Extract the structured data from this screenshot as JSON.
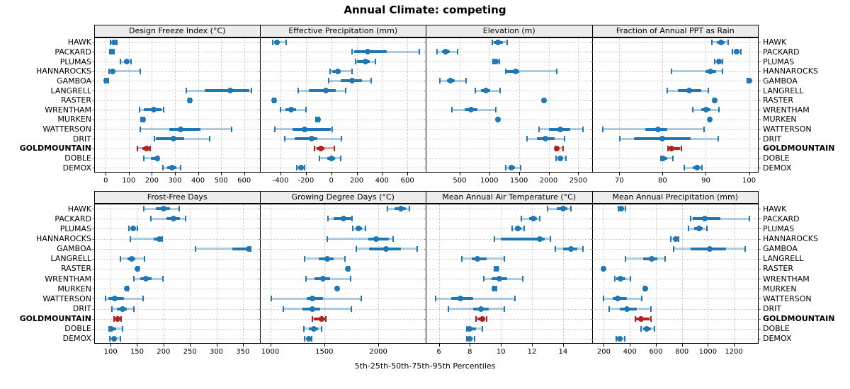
{
  "title": "Annual Climate: competing",
  "footer": "5th-25th-50th-75th-95th Percentiles",
  "sites": [
    "HAWK",
    "PACKARD",
    "PLUMAS",
    "HANNAROCKS",
    "GAMBOA",
    "LANGRELL",
    "RASTER",
    "WRENTHAM",
    "MURKEN",
    "WATTERSON",
    "DRIT",
    "GOLDMOUNTAIN",
    "DOBLE",
    "DEMOX"
  ],
  "highlight_site": "GOLDMOUNTAIN",
  "percentile_labels": [
    "5th",
    "25th",
    "50th",
    "75th",
    "95th"
  ],
  "colors": {
    "series": "#1f77b4",
    "series_band": "rgba(31,119,180,0.35)",
    "highlight": "#b22222",
    "highlight_band": "rgba(178,34,34,0.38)",
    "strip_bg": "#ececec",
    "grid": "#c9c9c9",
    "border": "#000000"
  },
  "chart_data": [
    {
      "type": "dotplot-interval",
      "title": "Design Freeze Index (°C)",
      "row": 0,
      "col": 0,
      "xlim": [
        -50,
        670
      ],
      "ticks": [
        0,
        100,
        200,
        300,
        400,
        500,
        600
      ],
      "grid": true,
      "values": {
        "HAWK": [
          20,
          28,
          35,
          42,
          48
        ],
        "PACKARD": [
          18,
          23,
          27,
          31,
          36
        ],
        "PLUMAS": [
          65,
          78,
          90,
          98,
          110
        ],
        "HANNAROCKS": [
          15,
          22,
          30,
          40,
          150
        ],
        "GAMBOA": [
          -3,
          0,
          1,
          5,
          12
        ],
        "LANGRELL": [
          348,
          430,
          540,
          622,
          632
        ],
        "RASTER": [
          358,
          362,
          365,
          368,
          372
        ],
        "WRENTHAM": [
          145,
          165,
          207,
          242,
          250
        ],
        "MURKEN": [
          153,
          157,
          161,
          165,
          169
        ],
        "WATTERSON": [
          150,
          275,
          325,
          410,
          545
        ],
        "DRIT": [
          211,
          218,
          293,
          339,
          450
        ],
        "GOLDMOUNTAIN": [
          138,
          160,
          176,
          191,
          194
        ],
        "DOBLE": [
          164,
          195,
          222,
          226,
          230
        ],
        "DEMOX": [
          247,
          266,
          288,
          307,
          326
        ]
      }
    },
    {
      "type": "dotplot-interval",
      "title": "Effective Precipitation (mm)",
      "row": 0,
      "col": 1,
      "xlim": [
        -560,
        750
      ],
      "ticks": [
        -400,
        -200,
        0,
        200,
        400,
        600
      ],
      "grid": true,
      "values": {
        "HAWK": [
          -460,
          -445,
          -430,
          -415,
          -355
        ],
        "PACKARD": [
          165,
          180,
          285,
          435,
          695
        ],
        "PLUMAS": [
          194,
          204,
          272,
          305,
          346
        ],
        "HANNAROCKS": [
          -9,
          9,
          52,
          74,
          163
        ],
        "GAMBOA": [
          -22,
          74,
          163,
          241,
          315
        ],
        "LANGRELL": [
          -263,
          -176,
          -41,
          37,
          115
        ],
        "RASTER": [
          -462,
          -456,
          -450,
          -444,
          -438
        ],
        "WRENTHAM": [
          -398,
          -361,
          -315,
          -278,
          -198
        ],
        "MURKEN": [
          -120,
          -112,
          -107,
          -101,
          -94
        ],
        "WATTERSON": [
          -448,
          -306,
          -209,
          -6,
          9
        ],
        "DRIT": [
          -367,
          -287,
          -157,
          -111,
          80
        ],
        "GOLDMOUNTAIN": [
          -133,
          -115,
          -80,
          -52,
          24
        ],
        "DOBLE": [
          -96,
          -33,
          0,
          28,
          74
        ],
        "DEMOX": [
          -272,
          -263,
          -240,
          -219,
          -213
        ]
      }
    },
    {
      "type": "dotplot-interval",
      "title": "Elevation (m)",
      "row": 0,
      "col": 2,
      "xlim": [
        -60,
        2740
      ],
      "ticks": [
        500,
        1000,
        1500,
        2000,
        2500
      ],
      "grid": true,
      "values": {
        "HAWK": [
          1046,
          1074,
          1145,
          1225,
          1297
        ],
        "PACKARD": [
          122,
          200,
          261,
          330,
          468
        ],
        "PLUMAS": [
          1058,
          1085,
          1113,
          1140,
          1165
        ],
        "HANNAROCKS": [
          1277,
          1290,
          1448,
          1504,
          2133
        ],
        "GAMBOA": [
          169,
          290,
          349,
          415,
          607
        ],
        "LANGRELL": [
          759,
          860,
          938,
          1010,
          1185
        ],
        "RASTER": [
          1910,
          1916,
          1922,
          1928,
          1934
        ],
        "WRENTHAM": [
          369,
          588,
          687,
          799,
          1105
        ],
        "MURKEN": [
          1130,
          1138,
          1145,
          1152,
          1160
        ],
        "WATTERSON": [
          1838,
          2009,
          2197,
          2367,
          2578
        ],
        "DRIT": [
          1635,
          1803,
          1950,
          2101,
          2269
        ],
        "GOLDMOUNTAIN": [
          2113,
          2125,
          2141,
          2175,
          2241
        ],
        "DOBLE": [
          2121,
          2155,
          2193,
          2230,
          2289
        ],
        "DEMOX": [
          1277,
          1330,
          1372,
          1430,
          1532
        ]
      }
    },
    {
      "type": "dotplot-interval",
      "title": "Fraction of Annual PPT as Rain",
      "row": 0,
      "col": 3,
      "xlim": [
        63.8,
        102.2
      ],
      "ticks": [
        70,
        80,
        90,
        100
      ],
      "grid": true,
      "values": {
        "HAWK": [
          91.4,
          92.5,
          93.5,
          94.3,
          95.1
        ],
        "PACKARD": [
          96.1,
          96.8,
          97.2,
          97.7,
          98.1
        ],
        "PLUMAS": [
          92.1,
          92.7,
          93.0,
          93.5,
          93.9
        ],
        "HANNAROCKS": [
          82.1,
          90.0,
          91.0,
          92.3,
          93.8
        ],
        "GAMBOA": [
          99.5,
          99.8,
          100.0,
          100.0,
          100.0
        ],
        "LANGRELL": [
          81.0,
          83.5,
          86.1,
          89.0,
          90.6
        ],
        "RASTER": [
          91.8,
          91.9,
          92.0,
          92.1,
          92.2
        ],
        "WRENTHAM": [
          87.0,
          89.0,
          90.1,
          91.0,
          93.0
        ],
        "MURKEN": [
          90.7,
          90.8,
          90.9,
          91.0,
          91.1
        ],
        "WATTERSON": [
          66.1,
          76.0,
          79.0,
          81.0,
          89.6
        ],
        "DRIT": [
          70.1,
          73.4,
          79.9,
          86.5,
          92.8
        ],
        "GOLDMOUNTAIN": [
          81.3,
          81.7,
          82.0,
          84.0,
          84.3
        ],
        "DOBLE": [
          79.6,
          79.8,
          80.1,
          81.0,
          82.4
        ],
        "DEMOX": [
          85.0,
          87.0,
          87.9,
          88.7,
          89.1
        ]
      }
    },
    {
      "type": "dotplot-interval",
      "title": "Frost-Free Days",
      "row": 1,
      "col": 0,
      "xlim": [
        69,
        383
      ],
      "ticks": [
        100,
        150,
        200,
        250,
        300,
        350
      ],
      "grid": true,
      "values": {
        "HAWK": [
          163,
          185,
          200,
          212,
          230
        ],
        "PACKARD": [
          176,
          205,
          219,
          231,
          242
        ],
        "PLUMAS": [
          135,
          140,
          143,
          147,
          151
        ],
        "HANNAROCKS": [
          137,
          181,
          192,
          195,
          197
        ],
        "GAMBOA": [
          261,
          330,
          361,
          363,
          365
        ],
        "LANGRELL": [
          119,
          132,
          140,
          147,
          164
        ],
        "RASTER": [
          149,
          150,
          151,
          152,
          153
        ],
        "WRENTHAM": [
          144,
          156,
          167,
          178,
          199
        ],
        "MURKEN": [
          129,
          130,
          131,
          132,
          133
        ],
        "WATTERSON": [
          91,
          96,
          108,
          125,
          161
        ],
        "DRIT": [
          103,
          112,
          122,
          131,
          144
        ],
        "GOLDMOUNTAIN": [
          106,
          108,
          113,
          118,
          120
        ],
        "DOBLE": [
          97,
          99,
          101,
          110,
          122
        ],
        "DEMOX": [
          99,
          103,
          107,
          112,
          118
        ]
      }
    },
    {
      "type": "dotplot-interval",
      "title": "Growing Degree Days (°C)",
      "row": 1,
      "col": 1,
      "xlim": [
        908,
        2445
      ],
      "ticks": [
        1000,
        1500,
        2000
      ],
      "grid": true,
      "values": {
        "HAWK": [
          2085,
          2150,
          2212,
          2255,
          2290
        ],
        "PACKARD": [
          1531,
          1585,
          1677,
          1749,
          1760
        ],
        "PLUMAS": [
          1764,
          1795,
          1819,
          1850,
          1880
        ],
        "HANNAROCKS": [
          1530,
          1905,
          1980,
          2100,
          2134
        ],
        "GAMBOA": [
          1795,
          1915,
          2070,
          2210,
          2360
        ],
        "LANGRELL": [
          1316,
          1447,
          1529,
          1588,
          1691
        ],
        "RASTER": [
          1712,
          1716,
          1720,
          1724,
          1728
        ],
        "WRENTHAM": [
          1328,
          1410,
          1487,
          1552,
          1745
        ],
        "MURKEN": [
          1610,
          1614,
          1618,
          1622,
          1626
        ],
        "WATTERSON": [
          1007,
          1335,
          1393,
          1487,
          1843
        ],
        "DRIT": [
          1122,
          1301,
          1393,
          1465,
          1749
        ],
        "GOLDMOUNTAIN": [
          1393,
          1400,
          1472,
          1509,
          1515
        ],
        "DOBLE": [
          1308,
          1360,
          1400,
          1443,
          1476
        ],
        "DEMOX": [
          1319,
          1340,
          1360,
          1375,
          1384
        ]
      }
    },
    {
      "type": "dotplot-interval",
      "title": "Mean Annual Air Temperature (°C)",
      "row": 1,
      "col": 2,
      "xlim": [
        5.2,
        15.9
      ],
      "ticks": [
        6,
        8,
        10,
        12,
        14
      ],
      "grid": true,
      "values": {
        "HAWK": [
          13.0,
          13.6,
          14.0,
          14.3,
          14.5
        ],
        "PACKARD": [
          11.3,
          11.8,
          12.1,
          12.3,
          12.5
        ],
        "PLUMAS": [
          10.7,
          10.9,
          11.1,
          11.3,
          11.5
        ],
        "HANNAROCKS": [
          9.6,
          10.0,
          12.5,
          12.8,
          13.2
        ],
        "GAMBOA": [
          13.5,
          14.0,
          14.5,
          14.9,
          15.3
        ],
        "LANGRELL": [
          7.5,
          8.1,
          8.5,
          9.1,
          10.2
        ],
        "RASTER": [
          9.6,
          9.65,
          9.7,
          9.75,
          9.8
        ],
        "WRENTHAM": [
          8.9,
          9.4,
          9.9,
          10.4,
          11.4
        ],
        "MURKEN": [
          9.5,
          9.55,
          9.6,
          9.65,
          9.7
        ],
        "WATTERSON": [
          5.8,
          6.8,
          7.4,
          8.2,
          10.9
        ],
        "DRIT": [
          6.6,
          8.2,
          8.7,
          9.2,
          10.2
        ],
        "GOLDMOUNTAIN": [
          8.4,
          8.5,
          8.8,
          9.0,
          9.1
        ],
        "DOBLE": [
          7.8,
          7.9,
          8.0,
          8.4,
          8.8
        ],
        "DEMOX": [
          7.8,
          7.9,
          8.0,
          8.15,
          8.3
        ]
      }
    },
    {
      "type": "dotplot-interval",
      "title": "Mean Annual Precipitation (mm)",
      "row": 1,
      "col": 3,
      "xlim": [
        113,
        1390
      ],
      "ticks": [
        200,
        400,
        600,
        800,
        1000,
        1200
      ],
      "grid": true,
      "values": {
        "HAWK": [
          310,
          322,
          335,
          350,
          367
        ],
        "PACKARD": [
          865,
          885,
          975,
          1095,
          1320
        ],
        "PLUMAS": [
          850,
          895,
          930,
          960,
          990
        ],
        "HANNAROCKS": [
          715,
          735,
          753,
          765,
          775
        ],
        "GAMBOA": [
          735,
          865,
          1015,
          1140,
          1285
        ],
        "LANGRELL": [
          367,
          505,
          567,
          613,
          672
        ],
        "RASTER": [
          190,
          193,
          195,
          198,
          201
        ],
        "WRENTHAM": [
          285,
          295,
          330,
          367,
          404
        ],
        "MURKEN": [
          510,
          513,
          516,
          519,
          522
        ],
        "WATTERSON": [
          195,
          267,
          309,
          376,
          494
        ],
        "DRIT": [
          240,
          322,
          376,
          455,
          560
        ],
        "GOLDMOUNTAIN": [
          440,
          450,
          485,
          549,
          563
        ],
        "DOBLE": [
          485,
          505,
          530,
          560,
          590
        ],
        "DEMOX": [
          295,
          310,
          322,
          340,
          363
        ]
      }
    }
  ]
}
